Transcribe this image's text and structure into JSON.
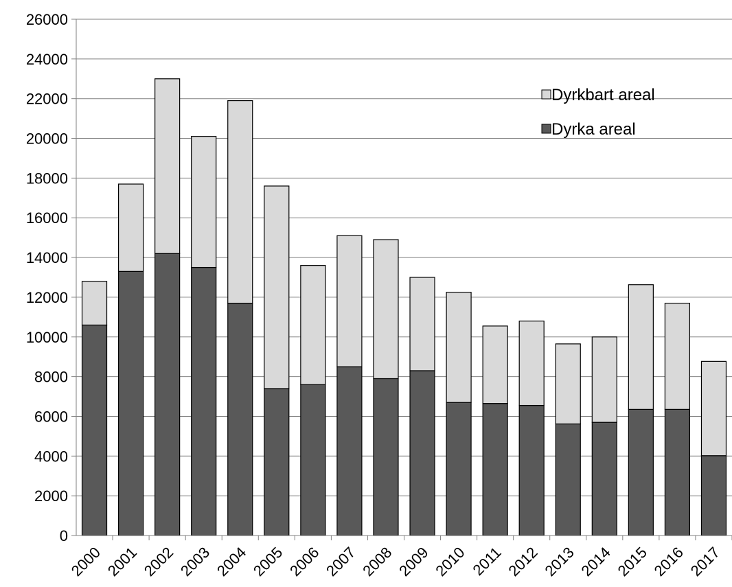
{
  "chart_data": {
    "type": "bar",
    "stacked": true,
    "title": "",
    "xlabel": "",
    "ylabel": "",
    "categories": [
      "2000",
      "2001",
      "2002",
      "2003",
      "2004",
      "2005",
      "2006",
      "2007",
      "2008",
      "2009",
      "2010",
      "2011",
      "2012",
      "2013",
      "2014",
      "2015",
      "2016",
      "2017"
    ],
    "series": [
      {
        "name": "Dyrka areal",
        "color": "#595959",
        "values": [
          10600,
          13300,
          14200,
          13500,
          11700,
          7400,
          7600,
          8500,
          7900,
          8300,
          6700,
          6650,
          6550,
          5620,
          5700,
          6350,
          6350,
          4020
        ]
      },
      {
        "name": "Dyrkbart areal",
        "color": "#d9d9d9",
        "values": [
          2200,
          4400,
          8800,
          6600,
          10200,
          10200,
          6000,
          6600,
          7000,
          4700,
          5550,
          3900,
          4250,
          4030,
          4300,
          6280,
          5350,
          4750
        ]
      }
    ],
    "ylim": [
      0,
      26000
    ],
    "yticks": [
      0,
      2000,
      4000,
      6000,
      8000,
      10000,
      12000,
      14000,
      16000,
      18000,
      20000,
      22000,
      24000,
      26000
    ],
    "grid": true,
    "legend_position": "top-right",
    "legend_order": [
      "Dyrkbart areal",
      "Dyrka areal"
    ]
  }
}
